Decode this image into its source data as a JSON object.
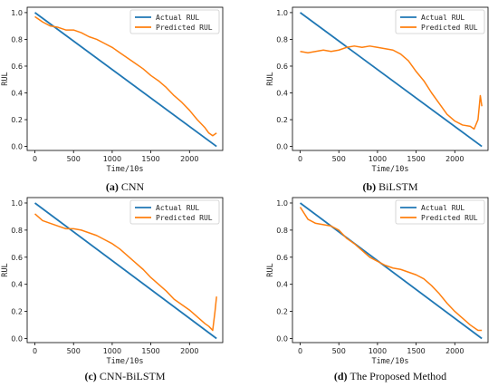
{
  "chart_data": [
    {
      "type": "line",
      "caption": {
        "letter": "(a)",
        "text": "CNN"
      },
      "xlabel": "Time/10s",
      "ylabel": "RUL",
      "xlim": [
        -100,
        2430
      ],
      "ylim": [
        -0.03,
        1.04
      ],
      "xticks": [
        0,
        500,
        1000,
        1500,
        2000
      ],
      "yticks": [
        0.0,
        0.2,
        0.4,
        0.6,
        0.8,
        1.0
      ],
      "legend_position": "upper-right",
      "series": [
        {
          "name": "Actual RUL",
          "color": "#1f77b4",
          "x": [
            0,
            2350
          ],
          "y": [
            1.0,
            0.0
          ]
        },
        {
          "name": "Predicted RUL",
          "color": "#ff7f0e",
          "x": [
            0,
            100,
            200,
            300,
            400,
            500,
            600,
            700,
            800,
            900,
            1000,
            1100,
            1200,
            1300,
            1400,
            1500,
            1600,
            1700,
            1800,
            1900,
            2000,
            2100,
            2200,
            2250,
            2300,
            2350
          ],
          "y": [
            0.97,
            0.93,
            0.9,
            0.89,
            0.87,
            0.87,
            0.85,
            0.82,
            0.8,
            0.77,
            0.74,
            0.7,
            0.66,
            0.62,
            0.58,
            0.53,
            0.49,
            0.44,
            0.38,
            0.33,
            0.27,
            0.2,
            0.14,
            0.1,
            0.08,
            0.1
          ]
        }
      ]
    },
    {
      "type": "line",
      "caption": {
        "letter": "(b)",
        "text": "BiLSTM"
      },
      "xlabel": "Time/10s",
      "ylabel": "RUL",
      "xlim": [
        -100,
        2430
      ],
      "ylim": [
        -0.03,
        1.04
      ],
      "xticks": [
        0,
        500,
        1000,
        1500,
        2000
      ],
      "yticks": [
        0.0,
        0.2,
        0.4,
        0.6,
        0.8,
        1.0
      ],
      "legend_position": "upper-right",
      "series": [
        {
          "name": "Actual RUL",
          "color": "#1f77b4",
          "x": [
            0,
            2350
          ],
          "y": [
            1.0,
            0.0
          ]
        },
        {
          "name": "Predicted RUL",
          "color": "#ff7f0e",
          "x": [
            0,
            100,
            200,
            300,
            400,
            500,
            600,
            700,
            800,
            900,
            1000,
            1100,
            1200,
            1300,
            1400,
            1500,
            1600,
            1700,
            1800,
            1900,
            2000,
            2100,
            2200,
            2250,
            2300,
            2330,
            2350
          ],
          "y": [
            0.71,
            0.7,
            0.71,
            0.72,
            0.71,
            0.72,
            0.74,
            0.75,
            0.74,
            0.75,
            0.74,
            0.73,
            0.72,
            0.69,
            0.64,
            0.56,
            0.49,
            0.4,
            0.32,
            0.24,
            0.19,
            0.16,
            0.15,
            0.13,
            0.2,
            0.38,
            0.3
          ]
        }
      ]
    },
    {
      "type": "line",
      "caption": {
        "letter": "(c)",
        "text": "CNN-BiLSTM"
      },
      "xlabel": "Time/10s",
      "ylabel": "RUL",
      "xlim": [
        -100,
        2430
      ],
      "ylim": [
        -0.03,
        1.04
      ],
      "xticks": [
        0,
        500,
        1000,
        1500,
        2000
      ],
      "yticks": [
        0.0,
        0.2,
        0.4,
        0.6,
        0.8,
        1.0
      ],
      "legend_position": "upper-right",
      "series": [
        {
          "name": "Actual RUL",
          "color": "#1f77b4",
          "x": [
            0,
            2350
          ],
          "y": [
            1.0,
            0.0
          ]
        },
        {
          "name": "Predicted RUL",
          "color": "#ff7f0e",
          "x": [
            0,
            100,
            200,
            300,
            400,
            500,
            600,
            700,
            800,
            900,
            1000,
            1100,
            1200,
            1300,
            1400,
            1500,
            1600,
            1700,
            1800,
            1900,
            2000,
            2100,
            2200,
            2250,
            2300,
            2330,
            2350
          ],
          "y": [
            0.92,
            0.87,
            0.85,
            0.83,
            0.81,
            0.81,
            0.8,
            0.78,
            0.76,
            0.73,
            0.7,
            0.66,
            0.61,
            0.56,
            0.51,
            0.45,
            0.4,
            0.35,
            0.29,
            0.25,
            0.21,
            0.16,
            0.11,
            0.09,
            0.06,
            0.2,
            0.31
          ]
        }
      ]
    },
    {
      "type": "line",
      "caption": {
        "letter": "(d)",
        "text": "The Proposed Method"
      },
      "xlabel": "Time/10s",
      "ylabel": "RUL",
      "xlim": [
        -100,
        2430
      ],
      "ylim": [
        -0.03,
        1.04
      ],
      "xticks": [
        0,
        500,
        1000,
        1500,
        2000
      ],
      "yticks": [
        0.0,
        0.2,
        0.4,
        0.6,
        0.8,
        1.0
      ],
      "legend_position": "upper-right",
      "series": [
        {
          "name": "Actual RUL",
          "color": "#1f77b4",
          "x": [
            0,
            2350
          ],
          "y": [
            1.0,
            0.0
          ]
        },
        {
          "name": "Predicted RUL",
          "color": "#ff7f0e",
          "x": [
            0,
            100,
            200,
            300,
            400,
            500,
            600,
            700,
            800,
            900,
            1000,
            1100,
            1200,
            1300,
            1400,
            1500,
            1600,
            1700,
            1800,
            1900,
            2000,
            2100,
            2200,
            2300,
            2350
          ],
          "y": [
            0.97,
            0.88,
            0.85,
            0.84,
            0.83,
            0.8,
            0.74,
            0.7,
            0.65,
            0.6,
            0.57,
            0.54,
            0.52,
            0.51,
            0.49,
            0.47,
            0.44,
            0.39,
            0.33,
            0.26,
            0.2,
            0.15,
            0.1,
            0.06,
            0.06
          ]
        }
      ]
    }
  ]
}
